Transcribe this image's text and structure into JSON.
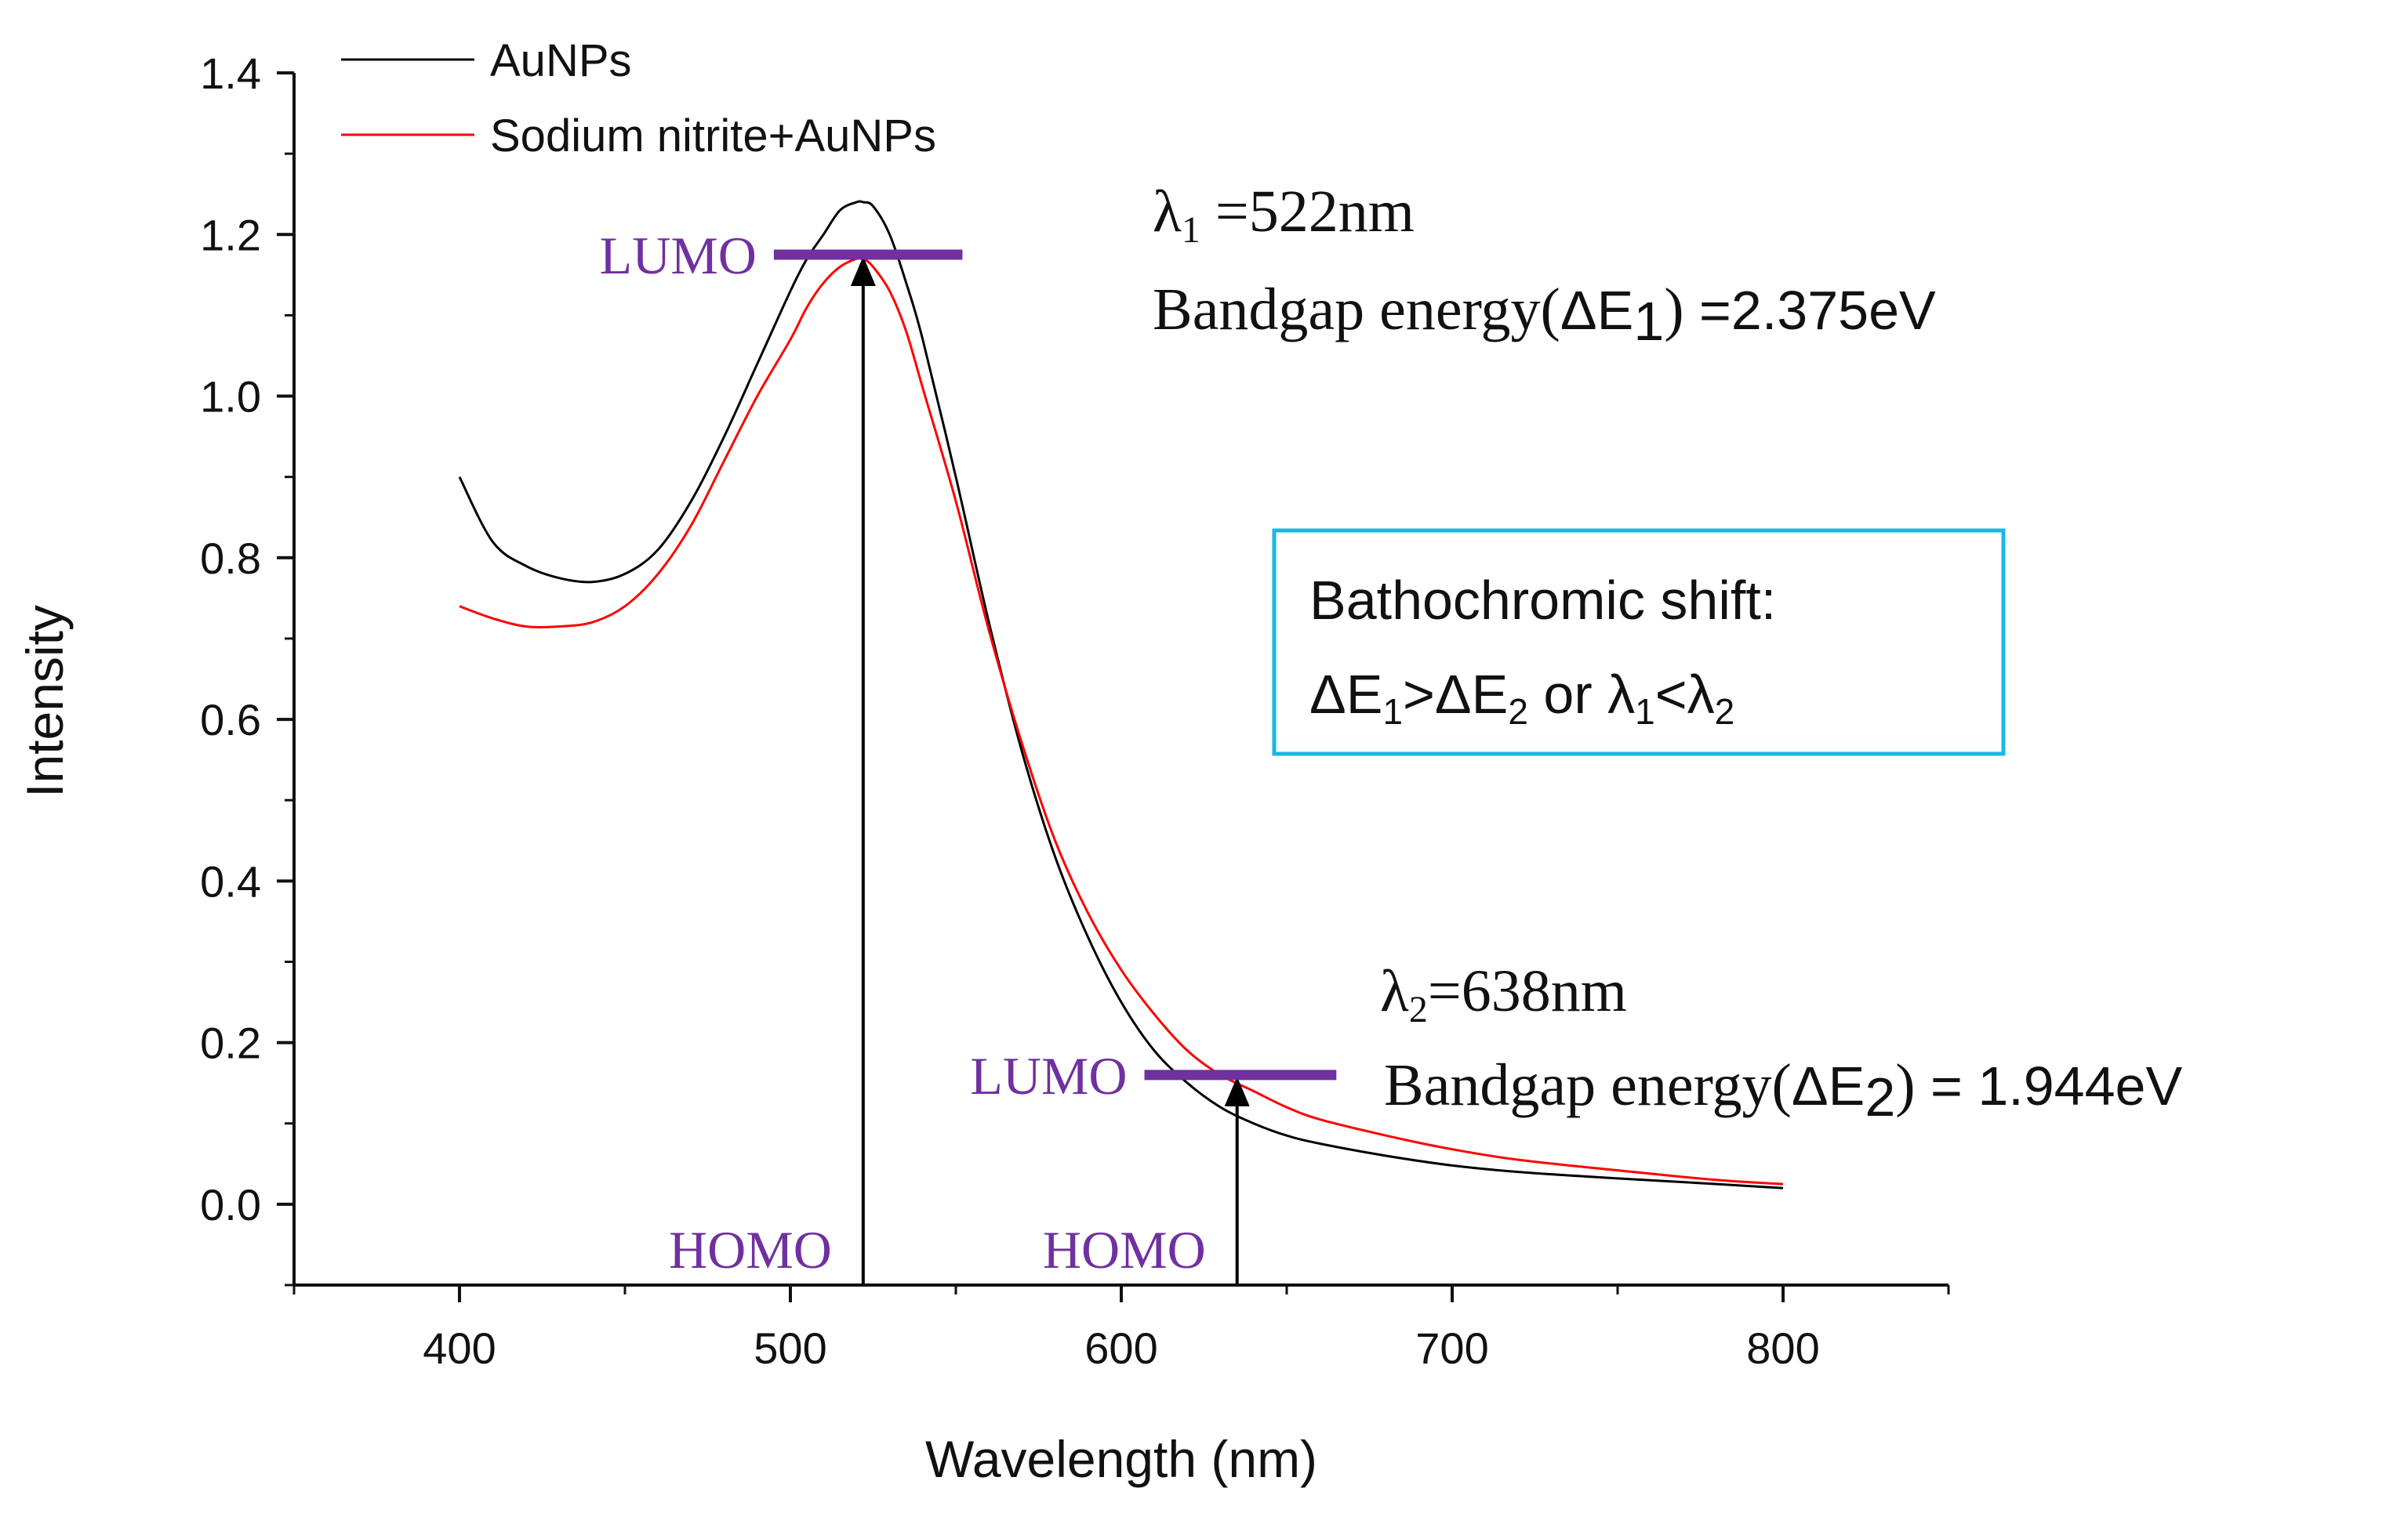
{
  "chart_data": {
    "type": "line",
    "xlabel": "Wavelength (nm)",
    "ylabel": "Intensity",
    "xlim": [
      350,
      850
    ],
    "ylim": [
      -0.1,
      1.4
    ],
    "xticks": [
      400,
      500,
      600,
      700,
      800
    ],
    "yticks": [
      0.0,
      0.2,
      0.4,
      0.6,
      0.8,
      1.0,
      1.2,
      1.4
    ],
    "x_tick_labels": [
      "400",
      "500",
      "600",
      "700",
      "800"
    ],
    "y_tick_labels": [
      "0.0",
      "0.2",
      "0.4",
      "0.6",
      "0.8",
      "1.0",
      "1.2",
      "1.4"
    ],
    "legend_position": "top-left",
    "series": [
      {
        "name": "AuNPs",
        "color": "#000000",
        "x": [
          400,
          410,
          420,
          430,
          440,
          450,
          460,
          470,
          480,
          490,
          500,
          505,
          510,
          515,
          520,
          522,
          525,
          530,
          535,
          540,
          550,
          560,
          570,
          580,
          590,
          600,
          610,
          620,
          630,
          640,
          650,
          660,
          680,
          700,
          720,
          750,
          780,
          800
        ],
        "y": [
          0.9,
          0.82,
          0.79,
          0.775,
          0.77,
          0.78,
          0.81,
          0.87,
          0.95,
          1.04,
          1.13,
          1.17,
          1.2,
          1.23,
          1.24,
          1.24,
          1.235,
          1.2,
          1.14,
          1.07,
          0.9,
          0.72,
          0.56,
          0.43,
          0.33,
          0.25,
          0.19,
          0.15,
          0.12,
          0.1,
          0.085,
          0.075,
          0.06,
          0.048,
          0.04,
          0.032,
          0.025,
          0.02
        ]
      },
      {
        "name": "Sodium nitrite+AuNPs",
        "color": "#ff0000",
        "x": [
          400,
          410,
          420,
          430,
          440,
          450,
          460,
          470,
          480,
          490,
          500,
          505,
          510,
          515,
          520,
          522,
          525,
          530,
          535,
          540,
          550,
          560,
          570,
          580,
          590,
          600,
          610,
          620,
          630,
          640,
          650,
          660,
          680,
          700,
          720,
          750,
          780,
          800
        ],
        "y": [
          0.74,
          0.725,
          0.715,
          0.715,
          0.72,
          0.74,
          0.78,
          0.84,
          0.92,
          1.0,
          1.07,
          1.11,
          1.14,
          1.16,
          1.17,
          1.17,
          1.16,
          1.13,
          1.08,
          1.01,
          0.87,
          0.71,
          0.57,
          0.45,
          0.36,
          0.29,
          0.235,
          0.19,
          0.16,
          0.14,
          0.12,
          0.105,
          0.085,
          0.068,
          0.055,
          0.042,
          0.03,
          0.025
        ]
      }
    ],
    "annotations": {
      "lambda1": {
        "symbol": "λ",
        "sub": "1",
        "text": " =522nm",
        "wavelength": 522
      },
      "bandgap1": {
        "prefix": "Bandgap energy(",
        "delta": "ΔE",
        "sub": "1",
        "suffix": ")",
        "value": " =2.375eV"
      },
      "lambda2": {
        "symbol": "λ",
        "sub": "2",
        "text": "=638nm",
        "wavelength": 638
      },
      "bandgap2": {
        "prefix": "Bandgap energy(",
        "delta": "ΔE",
        "sub": "2",
        "suffix": ")",
        "value": " = 1.944eV"
      },
      "box": {
        "line1": "Bathochromic shift:",
        "line2_a": "ΔE",
        "line2_a_sub": "1",
        "line2_b": ">ΔE",
        "line2_b_sub": "2",
        "line2_c": " or λ",
        "line2_c_sub": "1",
        "line2_d": "<λ",
        "line2_d_sub": "2",
        "border_color": "#1ab7e6"
      },
      "transitions": [
        {
          "lumo_label": "LUMO",
          "homo_label": "HOMO",
          "x": 522,
          "lumo_y": 1.175,
          "lumo_x_range": [
            495,
            552
          ]
        },
        {
          "lumo_label": "LUMO",
          "homo_label": "HOMO",
          "x": 635,
          "lumo_y": 0.16,
          "lumo_x_range": [
            607,
            665
          ]
        }
      ],
      "orbital_color": "#7030a0"
    }
  }
}
